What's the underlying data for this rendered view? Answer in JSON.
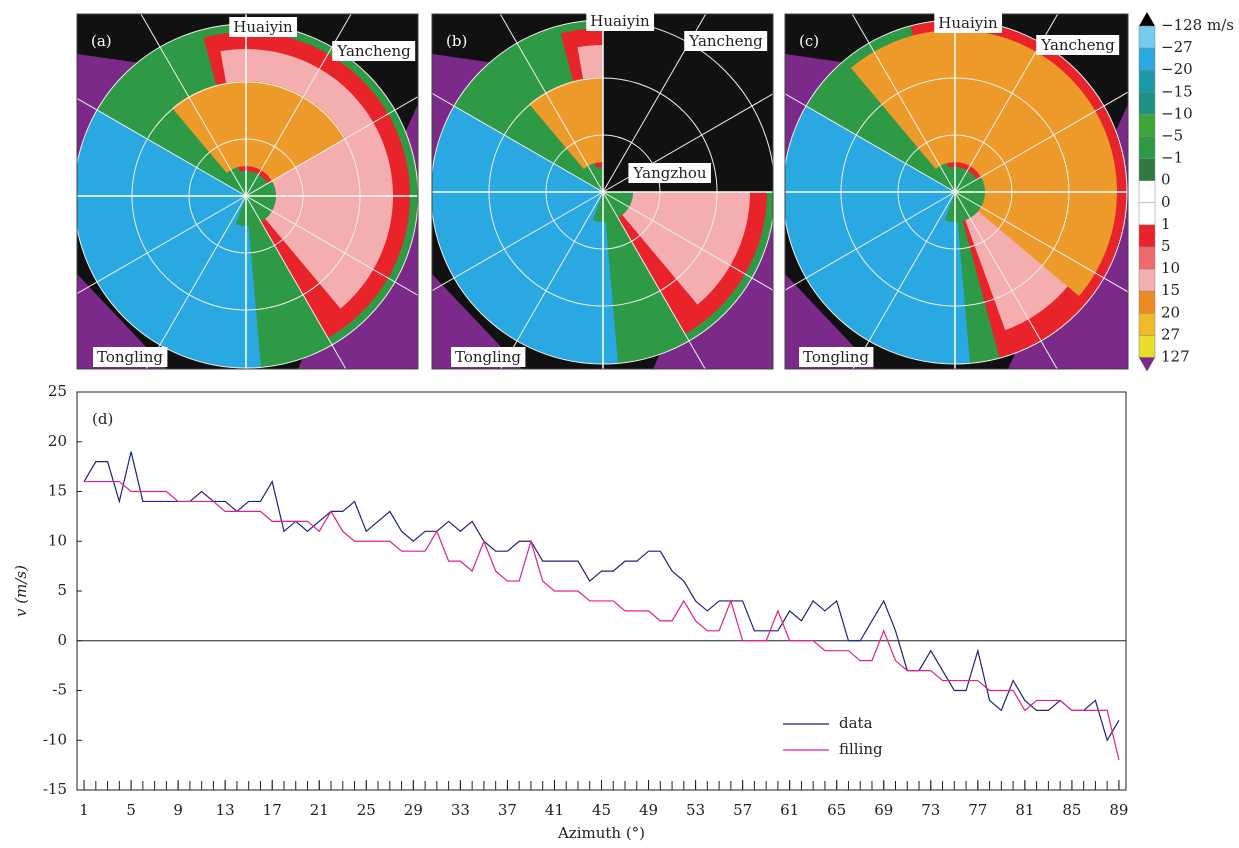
{
  "panels": [
    {
      "label": "(a)",
      "places": [
        "Huaiyin",
        "Yancheng",
        "Tongling"
      ]
    },
    {
      "label": "(b)",
      "places": [
        "Huaiyin",
        "Yancheng",
        "Yangzhou",
        "Tongling"
      ]
    },
    {
      "label": "(c)",
      "places": [
        "Huaiyin",
        "Yancheng",
        "Tongling"
      ]
    }
  ],
  "colorbar": {
    "colors": [
      "#000000",
      "#74cbee",
      "#2aa8e2",
      "#1b9aa6",
      "#1e9084",
      "#3fa63a",
      "#2e9a45",
      "#2f7a3f",
      "#ffffff",
      "#ffffff",
      "#e8232a",
      "#ee6b6b",
      "#f4aeb0",
      "#ee8a23",
      "#f1bb25",
      "#e8dc2c",
      "#7b2a8a"
    ],
    "labels": [
      "−128  m/s",
      "−27",
      "−20",
      "−15",
      "−10",
      "−5",
      "−1",
      "0",
      "0",
      "1",
      "5",
      "10",
      "15",
      "20",
      "27",
      "127"
    ]
  },
  "chart_data": {
    "type": "line",
    "panel_label": "(d)",
    "xlabel": "Azimuth (°)",
    "ylabel": "v (m/s)",
    "x": [
      1,
      2,
      3,
      4,
      5,
      6,
      7,
      8,
      9,
      10,
      11,
      12,
      13,
      14,
      15,
      16,
      17,
      18,
      19,
      20,
      21,
      22,
      23,
      24,
      25,
      26,
      27,
      28,
      29,
      30,
      31,
      32,
      33,
      34,
      35,
      36,
      37,
      38,
      39,
      40,
      41,
      42,
      43,
      44,
      45,
      46,
      47,
      48,
      49,
      50,
      51,
      52,
      53,
      54,
      55,
      56,
      57,
      58,
      59,
      60,
      61,
      62,
      63,
      64,
      65,
      66,
      67,
      68,
      69,
      70,
      71,
      72,
      73,
      74,
      75,
      76,
      77,
      78,
      79,
      80,
      81,
      82,
      83,
      84,
      85,
      86,
      87,
      88,
      89
    ],
    "series": [
      {
        "name": "data",
        "color": "#1f2280",
        "values": [
          16,
          18,
          18,
          14,
          19,
          14,
          14,
          14,
          14,
          14,
          15,
          14,
          14,
          13,
          14,
          14,
          16,
          11,
          12,
          11,
          12,
          13,
          13,
          14,
          11,
          12,
          13,
          11,
          10,
          11,
          11,
          12,
          11,
          12,
          10,
          9,
          9,
          10,
          10,
          8,
          8,
          8,
          8,
          6,
          7,
          7,
          8,
          8,
          9,
          9,
          7,
          6,
          4,
          3,
          4,
          4,
          4,
          1,
          1,
          1,
          3,
          2,
          4,
          3,
          4,
          0,
          0,
          2,
          4,
          1,
          -3,
          -3,
          -1,
          -3,
          -5,
          -5,
          -1,
          -6,
          -7,
          -4,
          -6,
          -7,
          -7,
          -6,
          -7,
          -7,
          -6,
          -10,
          -8
        ]
      },
      {
        "name": "filling",
        "color": "#e0208c",
        "values": [
          16,
          16,
          16,
          16,
          15,
          15,
          15,
          15,
          14,
          14,
          14,
          14,
          13,
          13,
          13,
          13,
          12,
          12,
          12,
          12,
          11,
          13,
          11,
          10,
          10,
          10,
          10,
          9,
          9,
          9,
          11,
          8,
          8,
          7,
          10,
          7,
          6,
          6,
          10,
          6,
          5,
          5,
          5,
          4,
          4,
          4,
          3,
          3,
          3,
          2,
          2,
          4,
          2,
          1,
          1,
          4,
          0,
          0,
          0,
          3,
          0,
          0,
          0,
          -1,
          -1,
          -1,
          -2,
          -2,
          1,
          -2,
          -3,
          -3,
          -3,
          -4,
          -4,
          -4,
          -4,
          -5,
          -5,
          -5,
          -7,
          -6,
          -6,
          -6,
          -7,
          -7,
          -7,
          -7,
          -12
        ]
      }
    ],
    "xlim": [
      0.4,
      89.6
    ],
    "ylim": [
      -15,
      25
    ],
    "xticks": [
      1,
      5,
      9,
      13,
      17,
      21,
      25,
      29,
      33,
      37,
      41,
      45,
      49,
      53,
      57,
      61,
      65,
      69,
      73,
      77,
      81,
      85,
      89
    ],
    "yticks": [
      -15,
      -10,
      -5,
      0,
      5,
      10,
      15,
      20,
      25
    ],
    "zero_line": true,
    "legend": "lower right"
  }
}
